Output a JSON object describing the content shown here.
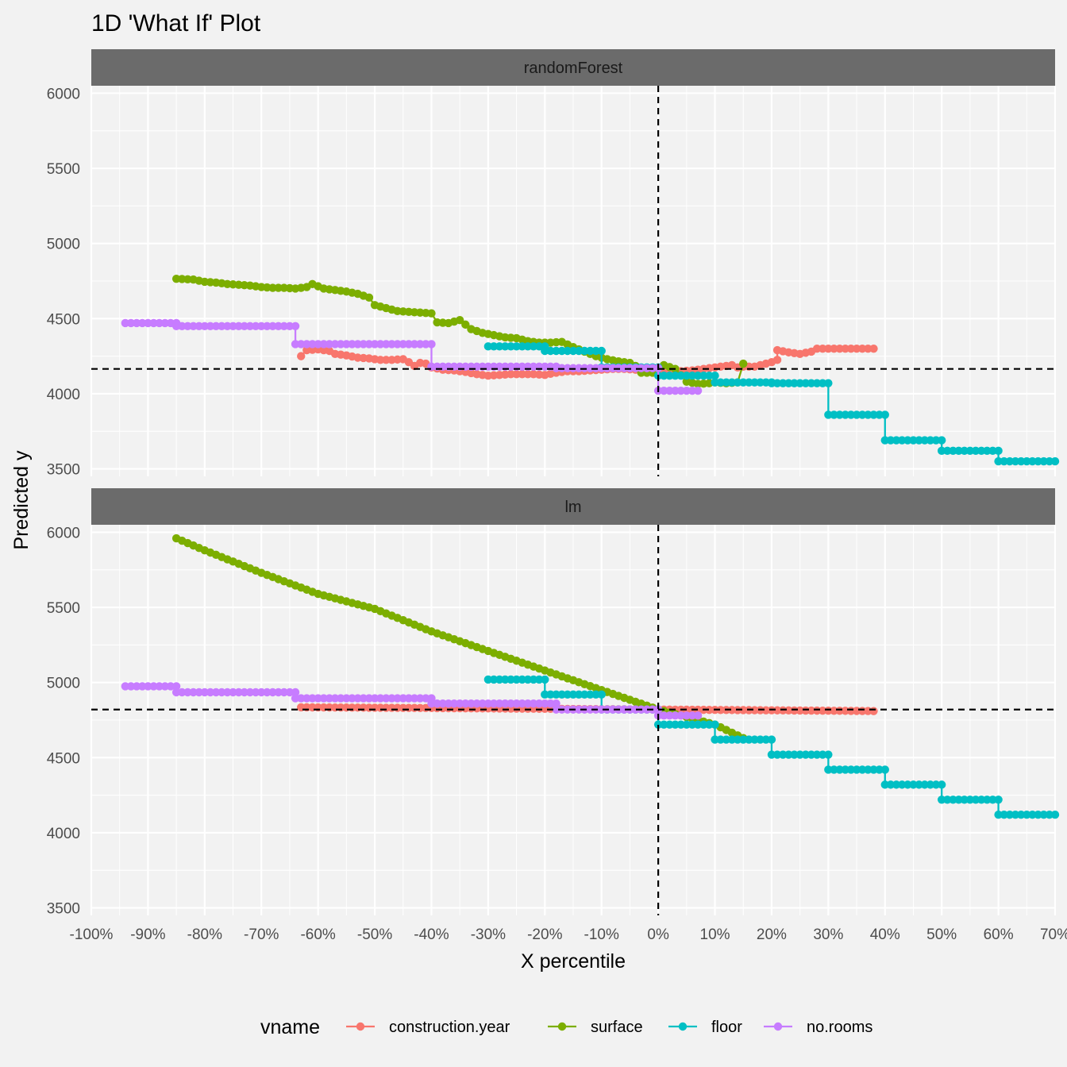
{
  "chart_data": {
    "type": "line",
    "title": "1D 'What If' Plot",
    "xlabel": "X percentile",
    "ylabel": "Predicted y",
    "xlim": [
      -100,
      70
    ],
    "ylim": [
      3450,
      6050
    ],
    "x_ticks": [
      "-100%",
      "-90%",
      "-80%",
      "-70%",
      "-60%",
      "-50%",
      "-40%",
      "-30%",
      "-20%",
      "-10%",
      "0%",
      "10%",
      "20%",
      "30%",
      "40%",
      "50%",
      "60%",
      "70%"
    ],
    "y_ticks": [
      "3500",
      "4000",
      "4500",
      "5000",
      "5500",
      "6000"
    ],
    "legend": {
      "title": "vname",
      "position": "bottom"
    },
    "colors": {
      "construction.year": "#F8766D",
      "surface": "#7CAE00",
      "floor": "#00BFC4",
      "no.rooms": "#C77CFF"
    },
    "panels": [
      {
        "label": "randomForest",
        "reference": {
          "x": 0,
          "y": 4165
        },
        "series": [
          {
            "name": "construction.year",
            "points": [
              [
                -63,
                4250
              ],
              [
                -62,
                4290
              ],
              [
                -60,
                4295
              ],
              [
                -58,
                4285
              ],
              [
                -57,
                4265
              ],
              [
                -55,
                4255
              ],
              [
                -53,
                4240
              ],
              [
                -51,
                4235
              ],
              [
                -49,
                4225
              ],
              [
                -47,
                4225
              ],
              [
                -45,
                4230
              ],
              [
                -44,
                4210
              ],
              [
                -43,
                4185
              ],
              [
                -42,
                4205
              ],
              [
                -41,
                4200
              ],
              [
                -40,
                4175
              ],
              [
                -38,
                4160
              ],
              [
                -36,
                4155
              ],
              [
                -34,
                4145
              ],
              [
                -32,
                4130
              ],
              [
                -30,
                4120
              ],
              [
                -28,
                4125
              ],
              [
                -26,
                4130
              ],
              [
                -24,
                4130
              ],
              [
                -22,
                4130
              ],
              [
                -20,
                4125
              ],
              [
                -18,
                4140
              ],
              [
                -16,
                4150
              ],
              [
                -14,
                4150
              ],
              [
                -12,
                4155
              ],
              [
                -10,
                4160
              ],
              [
                -8,
                4165
              ],
              [
                -6,
                4165
              ],
              [
                -4,
                4160
              ],
              [
                -2,
                4165
              ],
              [
                0,
                4150
              ],
              [
                2,
                4145
              ],
              [
                4,
                4150
              ],
              [
                6,
                4155
              ],
              [
                8,
                4165
              ],
              [
                10,
                4175
              ],
              [
                12,
                4185
              ],
              [
                13,
                4190
              ],
              [
                14,
                4175
              ],
              [
                15,
                4180
              ],
              [
                17,
                4180
              ],
              [
                18,
                4190
              ],
              [
                19,
                4200
              ],
              [
                20,
                4210
              ],
              [
                21,
                4225
              ],
              [
                21,
                4290
              ],
              [
                23,
                4275
              ],
              [
                25,
                4265
              ],
              [
                27,
                4280
              ],
              [
                28,
                4300
              ],
              [
                30,
                4300
              ],
              [
                32,
                4300
              ],
              [
                34,
                4300
              ],
              [
                36,
                4300
              ],
              [
                38,
                4300
              ]
            ]
          },
          {
            "name": "surface",
            "points": [
              [
                -85,
                4765
              ],
              [
                -82,
                4760
              ],
              [
                -80,
                4745
              ],
              [
                -78,
                4740
              ],
              [
                -76,
                4730
              ],
              [
                -74,
                4725
              ],
              [
                -72,
                4720
              ],
              [
                -70,
                4710
              ],
              [
                -68,
                4705
              ],
              [
                -66,
                4705
              ],
              [
                -64,
                4700
              ],
              [
                -62,
                4710
              ],
              [
                -61,
                4730
              ],
              [
                -59,
                4700
              ],
              [
                -57,
                4690
              ],
              [
                -55,
                4680
              ],
              [
                -53,
                4665
              ],
              [
                -51,
                4640
              ],
              [
                -50,
                4590
              ],
              [
                -48,
                4570
              ],
              [
                -46,
                4550
              ],
              [
                -44,
                4545
              ],
              [
                -42,
                4540
              ],
              [
                -40,
                4535
              ],
              [
                -39,
                4475
              ],
              [
                -37,
                4470
              ],
              [
                -36,
                4480
              ],
              [
                -35,
                4490
              ],
              [
                -33,
                4430
              ],
              [
                -31,
                4405
              ],
              [
                -29,
                4390
              ],
              [
                -27,
                4375
              ],
              [
                -25,
                4370
              ],
              [
                -23,
                4350
              ],
              [
                -21,
                4340
              ],
              [
                -19,
                4340
              ],
              [
                -17,
                4345
              ],
              [
                -15,
                4310
              ],
              [
                -13,
                4280
              ],
              [
                -11,
                4250
              ],
              [
                -9,
                4230
              ],
              [
                -7,
                4215
              ],
              [
                -5,
                4205
              ],
              [
                -4,
                4185
              ],
              [
                -3,
                4140
              ],
              [
                -1,
                4140
              ],
              [
                0,
                4170
              ],
              [
                1,
                4190
              ],
              [
                3,
                4165
              ],
              [
                5,
                4080
              ],
              [
                7,
                4065
              ],
              [
                9,
                4070
              ],
              [
                10,
                4075
              ],
              [
                12,
                4070
              ],
              [
                14,
                4075
              ],
              [
                15,
                4200
              ]
            ]
          },
          {
            "name": "floor",
            "points": [
              [
                -30,
                4315
              ],
              [
                -20,
                4315
              ],
              [
                -20,
                4285
              ],
              [
                -10,
                4285
              ],
              [
                -10,
                4175
              ],
              [
                0,
                4175
              ],
              [
                0,
                4120
              ],
              [
                10,
                4120
              ],
              [
                10,
                4075
              ],
              [
                20,
                4075
              ],
              [
                20,
                4070
              ],
              [
                30,
                4070
              ],
              [
                30,
                3860
              ],
              [
                40,
                3860
              ],
              [
                40,
                3690
              ],
              [
                50,
                3690
              ],
              [
                50,
                3620
              ],
              [
                60,
                3620
              ],
              [
                60,
                3550
              ],
              [
                70,
                3550
              ]
            ]
          },
          {
            "name": "no.rooms",
            "points": [
              [
                -94,
                4470
              ],
              [
                -85,
                4470
              ],
              [
                -85,
                4450
              ],
              [
                -64,
                4450
              ],
              [
                -64,
                4330
              ],
              [
                -40,
                4330
              ],
              [
                -40,
                4180
              ],
              [
                -18,
                4180
              ],
              [
                -18,
                4170
              ],
              [
                0,
                4170
              ],
              [
                0,
                4020
              ],
              [
                7,
                4020
              ]
            ]
          }
        ]
      },
      {
        "label": "lm",
        "reference": {
          "x": 0,
          "y": 4820
        },
        "series": [
          {
            "name": "construction.year",
            "points": [
              [
                -63,
                4835
              ],
              [
                -40,
                4830
              ],
              [
                -20,
                4825
              ],
              [
                0,
                4820
              ],
              [
                20,
                4815
              ],
              [
                38,
                4810
              ]
            ]
          },
          {
            "name": "surface",
            "points": [
              [
                -85,
                5960
              ],
              [
                -80,
                5880
              ],
              [
                -70,
                5730
              ],
              [
                -60,
                5590
              ],
              [
                -50,
                5490
              ],
              [
                -40,
                5340
              ],
              [
                -30,
                5210
              ],
              [
                -20,
                5080
              ],
              [
                -10,
                4950
              ],
              [
                0,
                4820
              ],
              [
                10,
                4720
              ],
              [
                15,
                4630
              ]
            ]
          },
          {
            "name": "floor",
            "points": [
              [
                -30,
                5020
              ],
              [
                -20,
                5020
              ],
              [
                -20,
                4920
              ],
              [
                -10,
                4920
              ],
              [
                -10,
                4820
              ],
              [
                0,
                4820
              ],
              [
                0,
                4720
              ],
              [
                10,
                4720
              ],
              [
                10,
                4620
              ],
              [
                20,
                4620
              ],
              [
                20,
                4520
              ],
              [
                30,
                4520
              ],
              [
                30,
                4420
              ],
              [
                40,
                4420
              ],
              [
                40,
                4320
              ],
              [
                50,
                4320
              ],
              [
                50,
                4220
              ],
              [
                60,
                4220
              ],
              [
                60,
                4120
              ],
              [
                70,
                4120
              ]
            ]
          },
          {
            "name": "no.rooms",
            "points": [
              [
                -94,
                4975
              ],
              [
                -85,
                4975
              ],
              [
                -85,
                4935
              ],
              [
                -64,
                4935
              ],
              [
                -64,
                4895
              ],
              [
                -40,
                4895
              ],
              [
                -40,
                4860
              ],
              [
                -18,
                4860
              ],
              [
                -18,
                4820
              ],
              [
                0,
                4820
              ],
              [
                0,
                4780
              ],
              [
                7,
                4780
              ]
            ]
          }
        ]
      }
    ]
  }
}
